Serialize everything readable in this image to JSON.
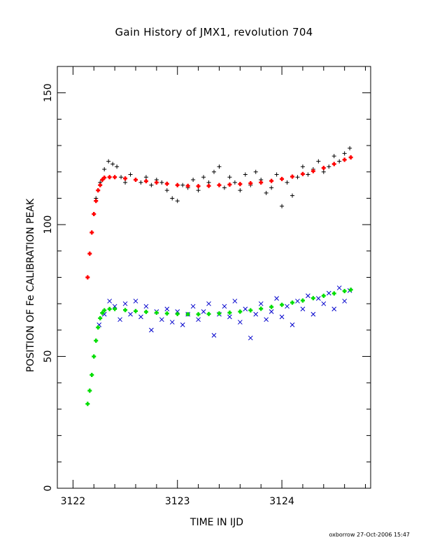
{
  "chart_data": {
    "type": "scatter",
    "title": "Gain History of JMX1, revolution 704",
    "xlabel": "TIME IN IJD",
    "ylabel": "POSITION OF Fe CALIBRATION PEAK",
    "xlim": [
      3121.85,
      3124.85
    ],
    "ylim": [
      0,
      160
    ],
    "xticks": [
      3122,
      3123,
      3124
    ],
    "yticks": [
      0,
      50,
      100,
      150
    ],
    "grid": false,
    "legend": "none",
    "series": [
      {
        "marker": "+",
        "color": "#000000",
        "x": [
          3122.22,
          3122.26,
          3122.3,
          3122.34,
          3122.38,
          3122.42,
          3122.46,
          3122.5,
          3122.55,
          3122.6,
          3122.65,
          3122.7,
          3122.75,
          3122.8,
          3122.85,
          3122.9,
          3122.95,
          3123.0,
          3123.05,
          3123.1,
          3123.15,
          3123.2,
          3123.25,
          3123.3,
          3123.35,
          3123.4,
          3123.45,
          3123.5,
          3123.55,
          3123.6,
          3123.65,
          3123.7,
          3123.75,
          3123.8,
          3123.85,
          3123.9,
          3123.95,
          3124.0,
          3124.05,
          3124.1,
          3124.15,
          3124.2,
          3124.25,
          3124.3,
          3124.35,
          3124.4,
          3124.45,
          3124.5,
          3124.55,
          3124.6,
          3124.65
        ],
        "y": [
          110,
          116,
          121,
          124,
          123,
          122,
          118,
          116,
          119,
          117,
          116,
          118,
          115,
          117,
          116,
          113,
          110,
          109,
          115,
          114,
          117,
          113,
          118,
          116,
          120,
          122,
          114,
          118,
          116,
          113,
          119,
          115,
          120,
          117,
          112,
          114,
          119,
          107,
          116,
          111,
          118,
          122,
          119,
          121,
          124,
          120,
          122,
          126,
          124,
          127,
          129
        ]
      },
      {
        "marker": "+",
        "color": "#ff0000",
        "x": [
          3122.14,
          3122.16,
          3122.18,
          3122.2,
          3122.22,
          3122.24,
          3122.26,
          3122.28,
          3122.3,
          3122.35,
          3122.4,
          3122.5,
          3122.6,
          3122.7,
          3122.8,
          3122.9,
          3123.0,
          3123.1,
          3123.2,
          3123.3,
          3123.4,
          3123.5,
          3123.6,
          3123.7,
          3123.8,
          3123.9,
          3124.0,
          3124.1,
          3124.2,
          3124.3,
          3124.4,
          3124.5,
          3124.6,
          3124.66
        ],
        "y": [
          80,
          89,
          97,
          104,
          109,
          113,
          115,
          117,
          117.8,
          118,
          118,
          117.5,
          117,
          116.5,
          116,
          115.5,
          115,
          114.7,
          114.6,
          114.7,
          115,
          115.2,
          115.4,
          115.7,
          116,
          116.6,
          117.3,
          118.2,
          119.2,
          120.3,
          121.5,
          123,
          124.6,
          125.5
        ]
      },
      {
        "marker": "x",
        "color": "#0000cc",
        "x": [
          3122.25,
          3122.3,
          3122.35,
          3122.4,
          3122.45,
          3122.5,
          3122.55,
          3122.6,
          3122.65,
          3122.7,
          3122.75,
          3122.8,
          3122.85,
          3122.9,
          3122.95,
          3123.0,
          3123.05,
          3123.1,
          3123.15,
          3123.2,
          3123.25,
          3123.3,
          3123.35,
          3123.4,
          3123.45,
          3123.5,
          3123.55,
          3123.6,
          3123.65,
          3123.7,
          3123.75,
          3123.8,
          3123.85,
          3123.9,
          3123.95,
          3124.0,
          3124.05,
          3124.1,
          3124.15,
          3124.2,
          3124.25,
          3124.3,
          3124.35,
          3124.4,
          3124.45,
          3124.5,
          3124.55,
          3124.6,
          3124.65
        ],
        "y": [
          62,
          66,
          71,
          69,
          64,
          70,
          66,
          71,
          65,
          69,
          60,
          67,
          64,
          68,
          63,
          67,
          62,
          66,
          69,
          64,
          67,
          70,
          58,
          66,
          69,
          65,
          71,
          63,
          68,
          57,
          66,
          70,
          64,
          67,
          72,
          65,
          69,
          62,
          71,
          68,
          73,
          66,
          72,
          70,
          74,
          68,
          76,
          71,
          75
        ]
      },
      {
        "marker": "+",
        "color": "#00dd00",
        "x": [
          3122.14,
          3122.16,
          3122.18,
          3122.2,
          3122.22,
          3122.24,
          3122.26,
          3122.28,
          3122.3,
          3122.35,
          3122.4,
          3122.5,
          3122.6,
          3122.7,
          3122.8,
          3122.9,
          3123.0,
          3123.1,
          3123.2,
          3123.3,
          3123.4,
          3123.5,
          3123.6,
          3123.7,
          3123.8,
          3123.9,
          3124.0,
          3124.1,
          3124.2,
          3124.3,
          3124.4,
          3124.5,
          3124.6,
          3124.66
        ],
        "y": [
          32,
          37,
          43,
          50,
          56,
          61,
          64.5,
          66.5,
          67.5,
          68,
          68,
          67.6,
          67.2,
          66.9,
          66.6,
          66.3,
          66.1,
          66,
          66,
          66.1,
          66.3,
          66.6,
          67,
          67.5,
          68.1,
          68.8,
          69.6,
          70.4,
          71.2,
          72.1,
          73,
          73.9,
          74.8,
          75.3
        ]
      }
    ]
  },
  "footer": "oxborrow 27-Oct-2006 15:47"
}
